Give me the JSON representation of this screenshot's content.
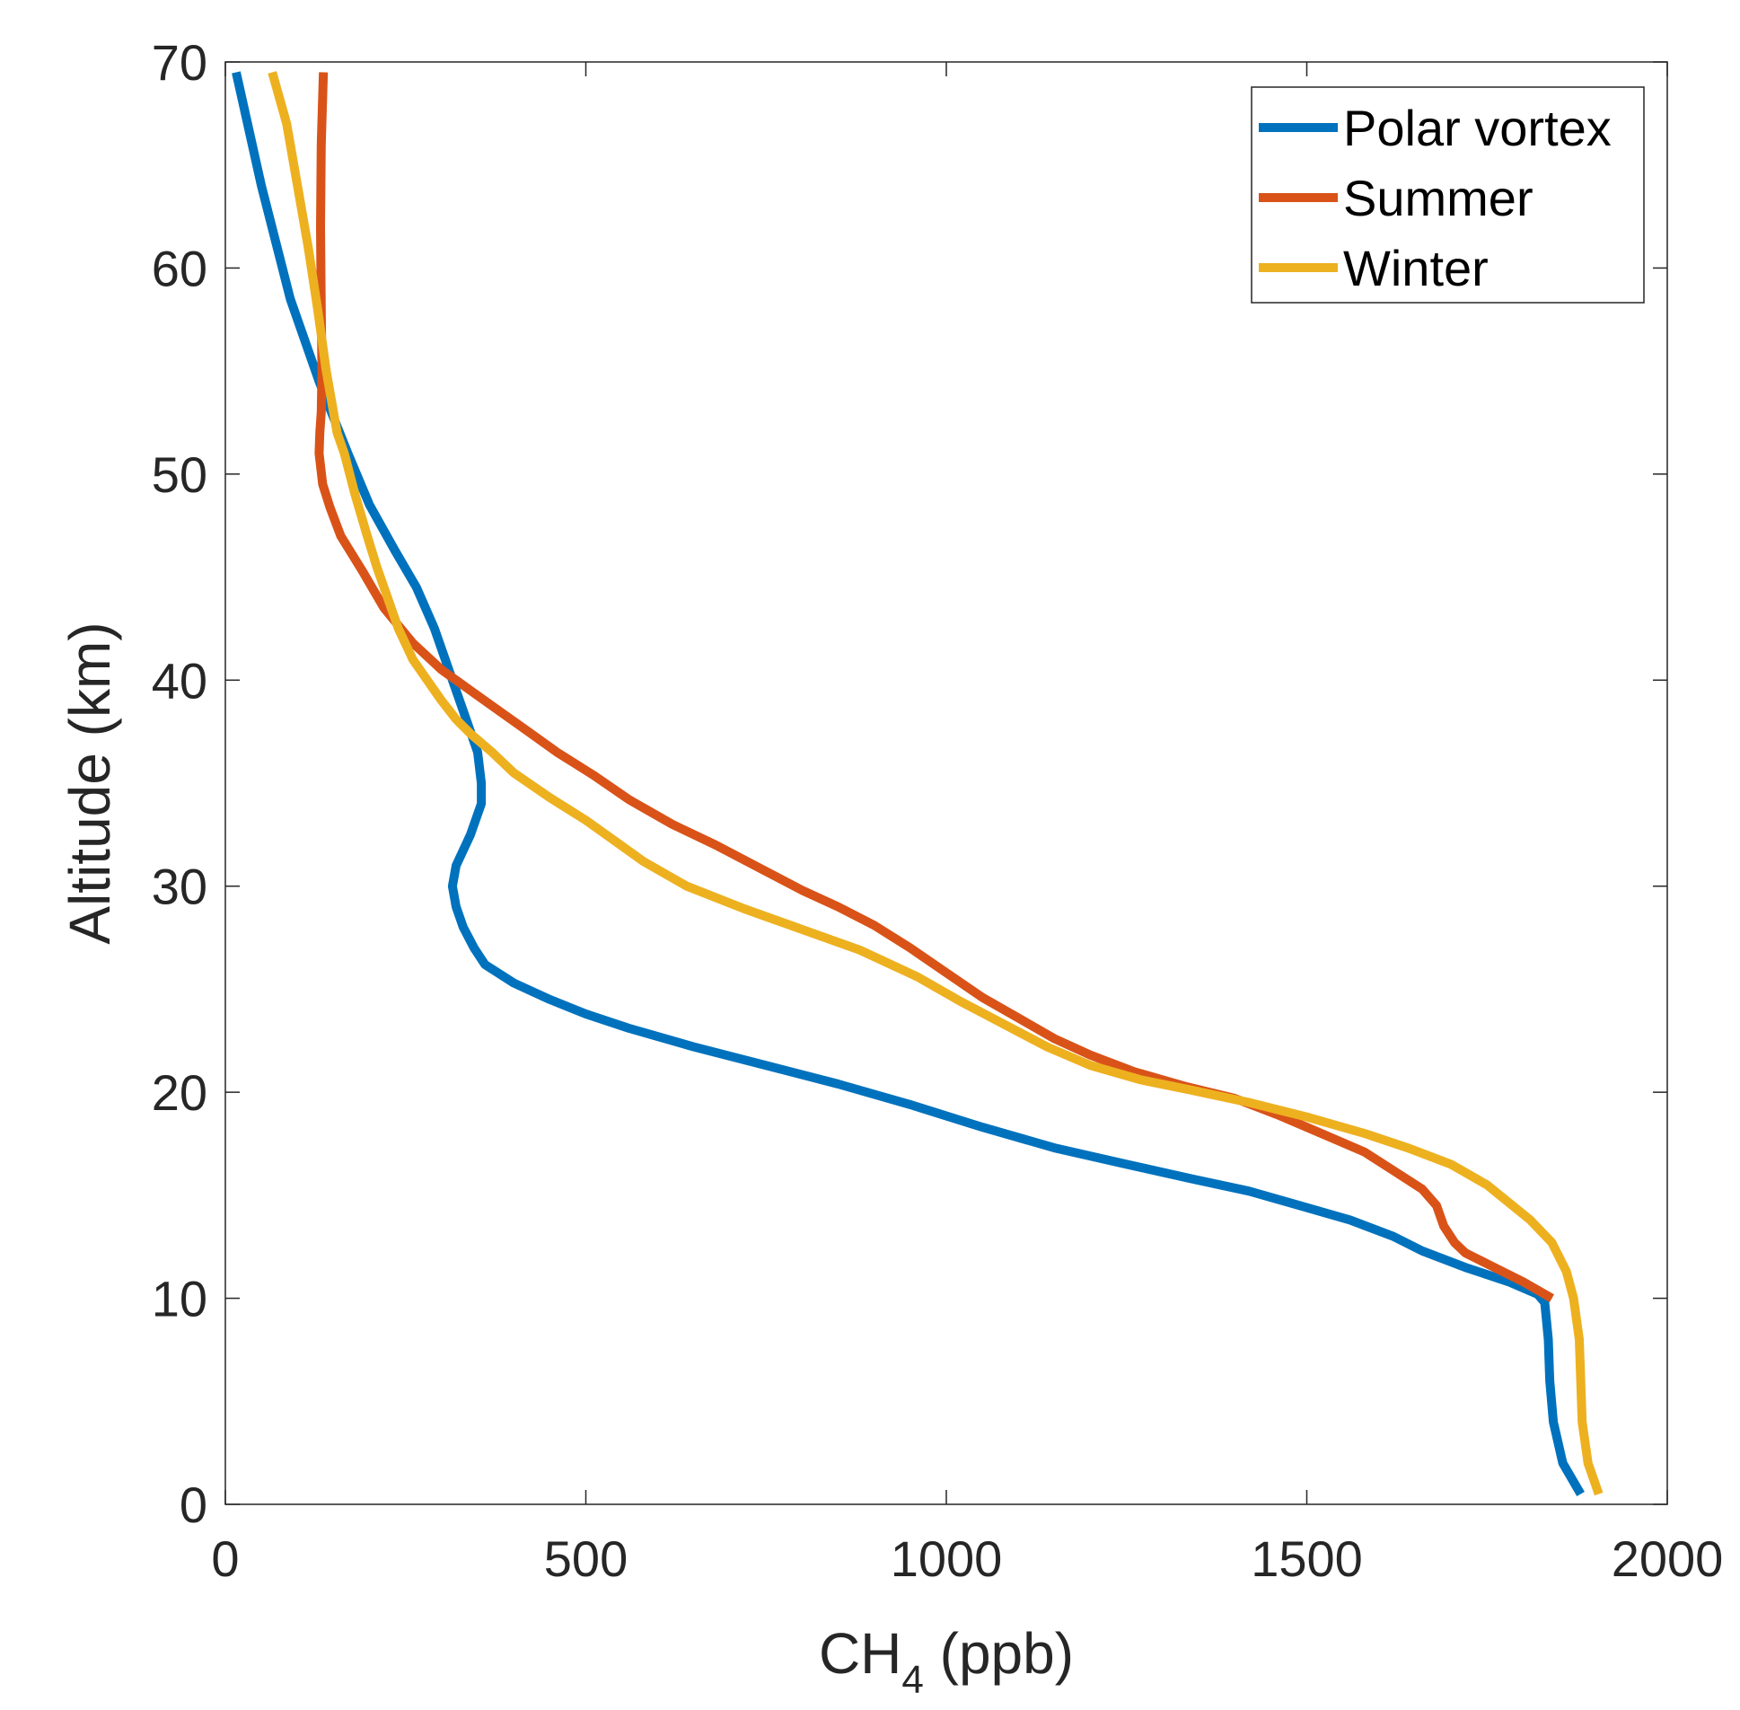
{
  "chart_data": {
    "type": "line",
    "title": "",
    "xlabel": "CH",
    "xlabel_subscript": "4",
    "xlabel_suffix": " (ppb)",
    "ylabel": "Altitude (km)",
    "xlim": [
      0,
      2000
    ],
    "ylim": [
      0,
      70
    ],
    "xticks": [
      0,
      500,
      1000,
      1500,
      2000
    ],
    "xtick_labels": [
      "0",
      "500",
      "1000",
      "1500",
      "2000"
    ],
    "yticks": [
      0,
      10,
      20,
      30,
      40,
      50,
      60,
      70
    ],
    "ytick_labels": [
      "0",
      "10",
      "20",
      "30",
      "40",
      "50",
      "60",
      "70"
    ],
    "grid": false,
    "legend_position": "top-right",
    "series": [
      {
        "name": "Polar vortex",
        "color": "#0072BD",
        "x": [
          1880,
          1855,
          1842,
          1837,
          1835,
          1830,
          1820,
          1780,
          1720,
          1660,
          1620,
          1560,
          1490,
          1420,
          1340,
          1250,
          1150,
          1050,
          950,
          850,
          750,
          650,
          560,
          500,
          450,
          400,
          360,
          345,
          330,
          320,
          315,
          320,
          340,
          355,
          355,
          350,
          330,
          310,
          290,
          265,
          235,
          200,
          170,
          130,
          90,
          50,
          15
        ],
        "y": [
          0.5,
          2,
          4,
          6,
          8,
          9.8,
          10.2,
          10.8,
          11.5,
          12.3,
          13,
          13.8,
          14.5,
          15.2,
          15.8,
          16.5,
          17.3,
          18.3,
          19.4,
          20.4,
          21.3,
          22.2,
          23.1,
          23.8,
          24.5,
          25.3,
          26.2,
          27,
          28,
          29,
          30,
          31,
          32.5,
          34,
          35,
          36.5,
          38.5,
          40.5,
          42.5,
          44.5,
          46.3,
          48.5,
          51,
          54.5,
          58.5,
          64,
          69.5
        ]
      },
      {
        "name": "Summer",
        "color": "#D95319",
        "x": [
          1840,
          1800,
          1760,
          1720,
          1705,
          1690,
          1680,
          1660,
          1620,
          1580,
          1520,
          1460,
          1400,
          1330,
          1260,
          1200,
          1150,
          1100,
          1050,
          1000,
          950,
          900,
          850,
          800,
          740,
          680,
          620,
          560,
          510,
          460,
          420,
          380,
          340,
          300,
          260,
          220,
          190,
          160,
          145,
          135,
          130,
          131,
          133,
          134,
          133,
          132,
          133,
          136
        ],
        "y": [
          10,
          10.8,
          11.5,
          12.2,
          12.7,
          13.5,
          14.5,
          15.3,
          16.2,
          17.1,
          18,
          18.9,
          19.7,
          20.3,
          21,
          21.8,
          22.6,
          23.6,
          24.6,
          25.8,
          27,
          28.1,
          29,
          29.8,
          30.9,
          32,
          33,
          34.2,
          35.4,
          36.5,
          37.5,
          38.5,
          39.5,
          40.5,
          41.8,
          43.5,
          45.3,
          47,
          48.4,
          49.5,
          51,
          52,
          53,
          55,
          58,
          62,
          66,
          69.5
        ]
      },
      {
        "name": "Winter",
        "color": "#EDB120",
        "x": [
          1905,
          1890,
          1882,
          1880,
          1878,
          1870,
          1860,
          1840,
          1810,
          1750,
          1700,
          1640,
          1580,
          1500,
          1420,
          1340,
          1270,
          1200,
          1140,
          1080,
          1020,
          960,
          880,
          800,
          720,
          640,
          580,
          540,
          500,
          450,
          400,
          370,
          340,
          320,
          300,
          280,
          260,
          240,
          225,
          210,
          195,
          180,
          165,
          155,
          140,
          128,
          115,
          100,
          85,
          65
        ],
        "y": [
          0.5,
          2,
          4,
          6,
          8,
          10,
          11.3,
          12.7,
          13.8,
          15.5,
          16.5,
          17.3,
          18,
          18.8,
          19.5,
          20.1,
          20.6,
          21.3,
          22.2,
          23.3,
          24.4,
          25.6,
          26.9,
          27.9,
          28.9,
          30,
          31.2,
          32.2,
          33.2,
          34.3,
          35.5,
          36.5,
          37.4,
          38.1,
          39,
          40,
          41,
          42.5,
          44,
          45.5,
          47.2,
          49,
          51,
          52,
          55,
          58,
          61,
          64,
          67,
          69.5
        ]
      }
    ]
  }
}
